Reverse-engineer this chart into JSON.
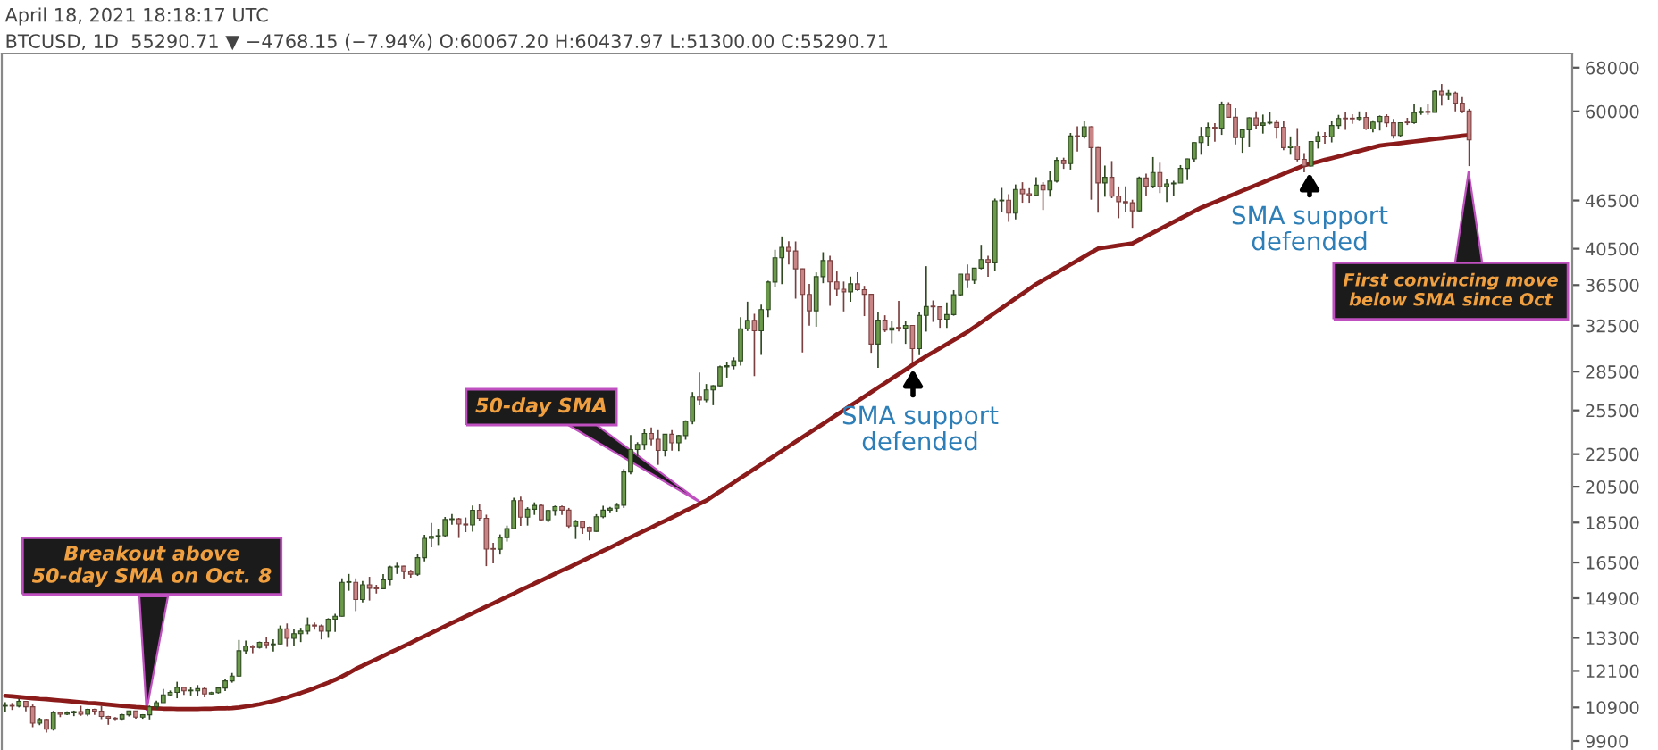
{
  "chart_data": {
    "type": "candlestick",
    "title": "April 18, 2021 18:18:17 UTC",
    "subtitle": "BTCUSD, 1D  55290.71 ▼ −4768.15 (−7.94%) O:60067.20 H:60437.97 L:51300.00 C:55290.71",
    "log": "y",
    "grid": false,
    "tick_labels": "y",
    "categories": [
      null,
      null,
      null,
      null,
      null,
      null,
      null,
      null,
      null,
      null,
      null,
      null,
      null,
      null,
      null,
      null,
      null,
      null,
      null,
      null,
      null,
      null,
      null,
      null,
      null,
      null,
      null,
      null,
      null,
      null,
      null,
      null,
      null,
      null,
      null,
      null,
      null,
      null,
      null,
      null,
      null,
      null,
      null,
      null,
      null,
      null,
      null,
      null,
      null,
      null,
      null,
      null,
      null,
      null,
      null,
      null,
      null,
      null,
      null,
      null,
      null,
      null,
      null,
      null,
      null,
      null,
      null,
      null,
      null,
      null,
      null,
      null,
      null,
      null,
      null,
      null,
      null,
      null,
      null,
      null,
      null,
      null,
      null,
      null,
      null,
      null,
      null,
      null,
      null,
      null,
      null,
      null,
      null,
      null,
      null,
      null,
      null,
      null,
      null,
      null,
      null,
      null,
      null,
      null,
      null,
      null,
      null,
      null,
      null,
      null,
      null,
      null,
      null,
      null,
      null,
      null,
      null,
      null,
      null,
      null,
      null,
      null,
      null,
      null,
      null,
      null,
      null,
      null,
      null,
      null,
      null,
      null,
      null,
      null,
      null,
      null,
      null,
      null,
      null,
      null,
      null,
      null,
      null,
      null,
      null,
      null,
      null,
      null,
      null,
      null,
      null,
      null,
      null,
      null,
      null,
      null,
      null,
      null,
      null,
      null,
      null,
      null,
      null,
      null,
      null,
      null,
      null,
      null,
      null,
      null,
      null,
      null,
      null,
      null,
      null,
      null,
      null,
      null,
      null,
      null,
      null,
      null,
      null,
      null,
      null,
      null,
      null,
      null,
      null,
      null,
      null,
      null,
      null,
      null,
      null,
      null,
      null,
      null,
      null,
      null,
      null,
      null,
      null,
      null,
      null,
      null,
      null,
      null,
      null,
      null,
      null,
      null,
      null,
      null
    ],
    "ylim": [
      9650,
      70800
    ],
    "yticks": [
      68000,
      60000,
      46500,
      40500,
      36500,
      32500,
      28500,
      25500,
      22500,
      20500,
      18500,
      16500,
      14900,
      13300,
      12100,
      10900,
      9900
    ],
    "series": [
      {
        "ohlc": [
          [
            10940,
            11060,
            10770,
            10950
          ],
          [
            10950,
            11040,
            10820,
            10940
          ],
          [
            10940,
            11180,
            10900,
            11090
          ],
          [
            11090,
            11100,
            10780,
            10920
          ],
          [
            10920,
            10990,
            10300,
            10420
          ],
          [
            10420,
            10580,
            10360,
            10530
          ],
          [
            10530,
            10550,
            10140,
            10240
          ],
          [
            10240,
            10790,
            10200,
            10740
          ],
          [
            10740,
            10770,
            10600,
            10690
          ],
          [
            10690,
            10780,
            10660,
            10730
          ],
          [
            10730,
            10800,
            10630,
            10770
          ],
          [
            10770,
            10950,
            10640,
            10690
          ],
          [
            10690,
            10860,
            10630,
            10840
          ],
          [
            10840,
            10860,
            10670,
            10780
          ],
          [
            10780,
            10950,
            10540,
            10620
          ],
          [
            10620,
            10640,
            10370,
            10570
          ],
          [
            10570,
            10600,
            10510,
            10550
          ],
          [
            10550,
            10700,
            10520,
            10670
          ],
          [
            10670,
            10800,
            10620,
            10790
          ],
          [
            10790,
            10800,
            10550,
            10600
          ],
          [
            10600,
            10690,
            10550,
            10670
          ],
          [
            10670,
            10960,
            10530,
            10920
          ],
          [
            10920,
            11110,
            10830,
            11050
          ],
          [
            11050,
            11490,
            11050,
            11300
          ],
          [
            11300,
            11440,
            11280,
            11380
          ],
          [
            11380,
            11730,
            11190,
            11540
          ],
          [
            11540,
            11550,
            11300,
            11430
          ],
          [
            11430,
            11560,
            11280,
            11430
          ],
          [
            11430,
            11620,
            11260,
            11500
          ],
          [
            11500,
            11540,
            11220,
            11330
          ],
          [
            11330,
            11400,
            11310,
            11370
          ],
          [
            11370,
            11570,
            11340,
            11520
          ],
          [
            11520,
            11820,
            11420,
            11760
          ],
          [
            11760,
            12030,
            11700,
            11920
          ],
          [
            11920,
            13220,
            11900,
            12820
          ],
          [
            12820,
            13200,
            12700,
            12990
          ],
          [
            12990,
            13030,
            12730,
            12940
          ],
          [
            12940,
            13160,
            12900,
            13130
          ],
          [
            13130,
            13350,
            12900,
            13040
          ],
          [
            13040,
            13250,
            12790,
            13070
          ],
          [
            13070,
            13780,
            13060,
            13650
          ],
          [
            13650,
            13860,
            12960,
            13280
          ],
          [
            13280,
            13630,
            12990,
            13460
          ],
          [
            13460,
            13690,
            13140,
            13560
          ],
          [
            13560,
            14100,
            13440,
            13800
          ],
          [
            13800,
            13900,
            13620,
            13760
          ],
          [
            13760,
            13820,
            13240,
            13560
          ],
          [
            13560,
            14070,
            13300,
            14030
          ],
          [
            14030,
            14250,
            13530,
            14150
          ],
          [
            14150,
            15770,
            14140,
            15590
          ],
          [
            15590,
            15970,
            15220,
            15590
          ],
          [
            15590,
            15770,
            14360,
            14840
          ],
          [
            14840,
            15650,
            14720,
            15480
          ],
          [
            15480,
            15840,
            14800,
            15330
          ],
          [
            15330,
            15480,
            15100,
            15310
          ],
          [
            15310,
            15960,
            15290,
            15700
          ],
          [
            15700,
            16350,
            15460,
            16290
          ],
          [
            16290,
            16490,
            15970,
            16330
          ],
          [
            16330,
            16340,
            15730,
            16080
          ],
          [
            16080,
            16160,
            15800,
            15960
          ],
          [
            15960,
            16890,
            15880,
            16730
          ],
          [
            16730,
            17860,
            16560,
            17680
          ],
          [
            17680,
            18480,
            17240,
            17780
          ],
          [
            17780,
            18140,
            17350,
            17820
          ],
          [
            17820,
            18800,
            17760,
            18660
          ],
          [
            18660,
            18960,
            18380,
            18700
          ],
          [
            18700,
            18750,
            17700,
            18420
          ],
          [
            18420,
            18770,
            18000,
            18370
          ],
          [
            18370,
            19420,
            18020,
            19160
          ],
          [
            19160,
            19490,
            18580,
            18730
          ],
          [
            18730,
            18920,
            16330,
            17150
          ],
          [
            17150,
            17460,
            16460,
            17140
          ],
          [
            17140,
            17880,
            16880,
            17720
          ],
          [
            17720,
            18340,
            17520,
            18180
          ],
          [
            18180,
            19860,
            18180,
            19700
          ],
          [
            19700,
            19920,
            18330,
            18790
          ],
          [
            18790,
            19330,
            18340,
            19220
          ],
          [
            19220,
            19600,
            18910,
            19430
          ],
          [
            19430,
            19520,
            18600,
            18650
          ],
          [
            18650,
            19190,
            18520,
            19150
          ],
          [
            19150,
            19420,
            18870,
            19360
          ],
          [
            19360,
            19420,
            18910,
            19170
          ],
          [
            19170,
            19290,
            18220,
            18320
          ],
          [
            18320,
            18640,
            17650,
            18550
          ],
          [
            18550,
            18560,
            17910,
            18250
          ],
          [
            18250,
            18290,
            17580,
            18040
          ],
          [
            18040,
            18950,
            18020,
            18810
          ],
          [
            18810,
            19410,
            18730,
            19170
          ],
          [
            19170,
            19350,
            19000,
            19270
          ],
          [
            19270,
            19570,
            19060,
            19440
          ],
          [
            19440,
            21560,
            19290,
            21380
          ],
          [
            21380,
            23770,
            21240,
            22800
          ],
          [
            22800,
            23280,
            22350,
            23140
          ],
          [
            23140,
            24170,
            22780,
            23870
          ],
          [
            23870,
            24290,
            23070,
            23480
          ],
          [
            23480,
            24100,
            21820,
            22740
          ],
          [
            22740,
            23840,
            22350,
            23820
          ],
          [
            23820,
            24100,
            22720,
            23240
          ],
          [
            23240,
            23780,
            22700,
            23730
          ],
          [
            23730,
            24790,
            23450,
            24710
          ],
          [
            24710,
            26870,
            24510,
            26490
          ],
          [
            26490,
            28420,
            25880,
            26280
          ],
          [
            26280,
            27500,
            26100,
            27040
          ],
          [
            27040,
            27410,
            25880,
            27360
          ],
          [
            27360,
            28990,
            27320,
            28890
          ],
          [
            28890,
            29300,
            28010,
            28980
          ],
          [
            28980,
            29680,
            28680,
            29390
          ],
          [
            29390,
            33300,
            28980,
            32200
          ],
          [
            32200,
            34810,
            32000,
            33000
          ],
          [
            33000,
            33620,
            28130,
            32020
          ],
          [
            32020,
            34500,
            29900,
            34030
          ],
          [
            34030,
            36940,
            33300,
            36820
          ],
          [
            36820,
            40380,
            36300,
            39460
          ],
          [
            39460,
            41950,
            36600,
            40670
          ],
          [
            40670,
            41380,
            38720,
            40240
          ],
          [
            40240,
            41350,
            35110,
            38240
          ],
          [
            38240,
            38260,
            30100,
            35540
          ],
          [
            35540,
            36630,
            32500,
            33910
          ],
          [
            33910,
            37850,
            32400,
            37390
          ],
          [
            37390,
            40100,
            36700,
            39150
          ],
          [
            39150,
            39700,
            34400,
            36830
          ],
          [
            36830,
            37950,
            35360,
            36070
          ],
          [
            36070,
            36870,
            33850,
            35800
          ],
          [
            35800,
            37400,
            34800,
            36630
          ],
          [
            36630,
            37850,
            35900,
            36020
          ],
          [
            36020,
            36420,
            33400,
            35550
          ],
          [
            35550,
            35600,
            30070,
            30830
          ],
          [
            30830,
            33830,
            28800,
            33010
          ],
          [
            33010,
            33480,
            31910,
            32100
          ],
          [
            32100,
            32940,
            30900,
            32290
          ],
          [
            32290,
            34880,
            31960,
            32270
          ],
          [
            32270,
            32930,
            30850,
            32520
          ],
          [
            32520,
            32560,
            29240,
            30430
          ],
          [
            30430,
            33800,
            29880,
            33470
          ],
          [
            33470,
            38530,
            31950,
            34320
          ],
          [
            34320,
            34930,
            32850,
            34300
          ],
          [
            34300,
            34310,
            32300,
            33110
          ],
          [
            33110,
            34740,
            32300,
            33540
          ],
          [
            33540,
            35980,
            33440,
            35510
          ],
          [
            35510,
            37660,
            35370,
            37660
          ],
          [
            37660,
            38710,
            36170,
            37010
          ],
          [
            37010,
            38330,
            36620,
            38310
          ],
          [
            38310,
            40960,
            38180,
            39260
          ],
          [
            39260,
            39700,
            37370,
            38890
          ],
          [
            38890,
            46750,
            38030,
            46450
          ],
          [
            46450,
            48200,
            45000,
            46530
          ],
          [
            46530,
            47330,
            43750,
            44850
          ],
          [
            44850,
            48680,
            44050,
            47990
          ],
          [
            47990,
            48990,
            46200,
            47400
          ],
          [
            47400,
            48160,
            46200,
            47190
          ],
          [
            47190,
            49700,
            47030,
            48590
          ],
          [
            48590,
            49000,
            45250,
            47930
          ],
          [
            47930,
            50650,
            47010,
            49150
          ],
          [
            49150,
            52620,
            48950,
            52160
          ],
          [
            52160,
            52550,
            50900,
            51680
          ],
          [
            51680,
            56400,
            50800,
            55920
          ],
          [
            55920,
            57500,
            53500,
            55840
          ],
          [
            55840,
            58350,
            55500,
            57410
          ],
          [
            57410,
            57500,
            46600,
            54090
          ],
          [
            54090,
            54190,
            44900,
            48890
          ],
          [
            48890,
            51380,
            47000,
            49680
          ],
          [
            49680,
            52050,
            46800,
            47070
          ],
          [
            47070,
            48400,
            44200,
            46340
          ],
          [
            46340,
            48400,
            45000,
            46190
          ],
          [
            46190,
            46600,
            43000,
            45140
          ],
          [
            45140,
            49790,
            45000,
            49590
          ],
          [
            49590,
            50200,
            47100,
            48430
          ],
          [
            48430,
            52650,
            48150,
            50370
          ],
          [
            50370,
            51800,
            47500,
            48370
          ],
          [
            48370,
            49450,
            46300,
            48760
          ],
          [
            48760,
            49200,
            47100,
            48880
          ],
          [
            48880,
            51450,
            48880,
            50970
          ],
          [
            50970,
            52400,
            49300,
            52380
          ],
          [
            52380,
            54900,
            51850,
            54880
          ],
          [
            54880,
            57400,
            53000,
            55860
          ],
          [
            55860,
            58100,
            54300,
            57330
          ],
          [
            57330,
            58000,
            55000,
            57200
          ],
          [
            57200,
            61700,
            56100,
            61180
          ],
          [
            61180,
            61600,
            59000,
            59000
          ],
          [
            59000,
            60600,
            54600,
            55640
          ],
          [
            55640,
            56900,
            53300,
            56900
          ],
          [
            56900,
            58990,
            54150,
            58910
          ],
          [
            58910,
            60000,
            57000,
            57650
          ],
          [
            57650,
            59450,
            56300,
            58030
          ],
          [
            58030,
            59900,
            57800,
            58100
          ],
          [
            58100,
            58600,
            55500,
            57350
          ],
          [
            57350,
            58400,
            53700,
            54090
          ],
          [
            54090,
            55850,
            53000,
            54340
          ],
          [
            54340,
            57200,
            52000,
            52300
          ],
          [
            52300,
            53250,
            50400,
            51320
          ],
          [
            51320,
            55100,
            51250,
            55050
          ],
          [
            55050,
            56600,
            53950,
            55860
          ],
          [
            55860,
            56550,
            54700,
            55780
          ],
          [
            55780,
            58400,
            54900,
            57620
          ],
          [
            57620,
            59400,
            57050,
            58800
          ],
          [
            58800,
            59800,
            56900,
            58740
          ],
          [
            58740,
            59500,
            57900,
            58730
          ],
          [
            58730,
            60000,
            58500,
            58980
          ],
          [
            58980,
            59800,
            56900,
            57060
          ],
          [
            57060,
            58500,
            56500,
            58200
          ],
          [
            58200,
            59300,
            56800,
            59130
          ],
          [
            59130,
            59500,
            57400,
            58060
          ],
          [
            58060,
            58700,
            55500,
            56000
          ],
          [
            56000,
            58150,
            55750,
            58090
          ],
          [
            58090,
            58900,
            57700,
            58080
          ],
          [
            58080,
            61200,
            57900,
            59770
          ],
          [
            59770,
            60700,
            59400,
            59990
          ],
          [
            59990,
            61200,
            59400,
            59830
          ],
          [
            59830,
            63750,
            59800,
            63580
          ],
          [
            63580,
            64900,
            61000,
            62960
          ],
          [
            62960,
            63800,
            62000,
            63230
          ],
          [
            63230,
            63500,
            60000,
            61450
          ],
          [
            61450,
            62500,
            59700,
            60070
          ],
          [
            60067.2,
            60437.97,
            51300.0,
            55290.71
          ]
        ]
      },
      {
        "type": "line",
        "color": "#8b1a1a",
        "values": [
          11270,
          11250,
          11230,
          11210,
          11190,
          11170,
          11160,
          11140,
          11120,
          11100,
          11080,
          11060,
          11040,
          11030,
          11010,
          10990,
          10970,
          10950,
          10930,
          10910,
          10900,
          10880,
          10870,
          10860,
          10860,
          10850,
          10850,
          10850,
          10850,
          10860,
          10860,
          10870,
          10870,
          10880,
          10900,
          10930,
          10960,
          11000,
          11050,
          11100,
          11160,
          11220,
          11290,
          11360,
          11440,
          11520,
          11610,
          11700,
          11800,
          11910,
          12030,
          12170,
          12280,
          12400,
          12510,
          12630,
          12750,
          12870,
          12990,
          13110,
          13240,
          13360,
          13490,
          13620,
          13750,
          13880,
          14010,
          14140,
          14270,
          14410,
          14550,
          14680,
          14820,
          14960,
          15100,
          15250,
          15390,
          15540,
          15680,
          15830,
          15980,
          16130,
          16270,
          16420,
          16580,
          16740,
          16900,
          17060,
          17220,
          17390,
          17560,
          17730,
          17900,
          18070,
          18240,
          18420,
          18590,
          18770,
          18950,
          19140,
          19320,
          19510,
          19700,
          19960,
          20220,
          20480,
          20750,
          21020,
          21290,
          21570,
          21850,
          22130,
          22420,
          22710,
          23010,
          23310,
          23610,
          23920,
          24230,
          24540,
          24860,
          25190,
          25520,
          25850,
          26180,
          26520,
          26870,
          27220,
          27570,
          27930,
          28290,
          28660,
          29040,
          29420,
          29770,
          30120,
          30470,
          30820,
          31180,
          31550,
          31920,
          32360,
          32800,
          33260,
          33720,
          34180,
          34650,
          35130,
          35610,
          36100,
          36600,
          37010,
          37430,
          37850,
          38280,
          38710,
          39150,
          39600,
          40060,
          40520,
          40640,
          40760,
          40880,
          41010,
          41130,
          41550,
          41980,
          42410,
          42840,
          43280,
          43720,
          44170,
          44620,
          45080,
          45540,
          45910,
          46280,
          46660,
          47040,
          47420,
          47810,
          48200,
          48590,
          48980,
          49380,
          49780,
          50190,
          50600,
          51010,
          51420,
          51680,
          51950,
          52220,
          52480,
          52750,
          53020,
          53300,
          53570,
          53850,
          54120,
          54400,
          54530,
          54660,
          54790,
          54920,
          55050,
          55180,
          55310,
          55440,
          55560,
          55690,
          55820,
          55940,
          56070
        ]
      }
    ],
    "annotations": [
      "Breakout above\n50-day SMA on Oct. 8",
      "50-day SMA",
      "SMA support\ndefended",
      "SMA support\ndefended",
      "First convincing move\nbelow SMA since Oct"
    ]
  }
}
